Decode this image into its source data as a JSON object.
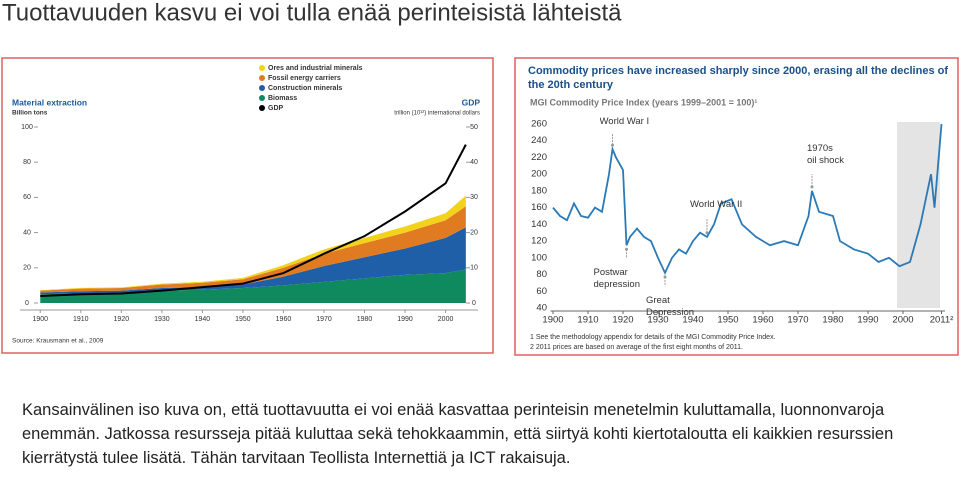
{
  "slide_title": "Tuottavuuden kasvu ei voi tulla enää perinteisistä lähteistä",
  "body_text": "Kansainvälinen iso kuva on, että tuottavuutta ei voi enää kasvattaa perinteisin menetelmin kuluttamalla, luonnonvaroja enemmän. Jatkossa resursseja pitää kuluttaa sekä tehokkaammin, että siirtyä kohti kiertotaloutta eli kaikkien resurssien kierrätystä tulee lisätä. Tähän tarvitaan Teollista Internettiä ja ICT rakaisuja.",
  "chart_data": [
    {
      "type": "stacked-area",
      "title": "Material extraction",
      "y_label": "Billion tons",
      "y2_label": "GDP",
      "y2_unit": "trillion (10¹²) international dollars",
      "source": "Source: Krausmann et al., 2009",
      "x": [
        1900,
        1910,
        1920,
        1930,
        1940,
        1950,
        1960,
        1970,
        1980,
        1990,
        2000,
        2005
      ],
      "series": [
        {
          "name": "Biomass",
          "color": "#0f8a5f",
          "values": [
            5,
            5.5,
            6,
            7,
            7.5,
            8.5,
            10,
            12,
            14,
            16,
            17,
            19
          ]
        },
        {
          "name": "Construction minerals",
          "color": "#1f5fa8",
          "values": [
            1,
            1.2,
            1,
            1.5,
            1.5,
            2,
            5,
            9,
            12,
            15,
            20,
            24
          ]
        },
        {
          "name": "Fossil energy carriers",
          "color": "#e07b22",
          "values": [
            1,
            1.5,
            1.5,
            2,
            2.5,
            3,
            5,
            7,
            8,
            9,
            10,
            12
          ]
        },
        {
          "name": "Ores and industrial minerals",
          "color": "#f2d21b",
          "values": [
            0.3,
            0.4,
            0.4,
            0.5,
            0.6,
            0.8,
            1.5,
            2.5,
            3,
            3.5,
            4,
            6
          ]
        },
        {
          "name": "GDP",
          "color": "#000000",
          "axis": "y2",
          "values": [
            2,
            2.5,
            2.7,
            3.5,
            4.5,
            5.5,
            8.5,
            14,
            19,
            26,
            34,
            45
          ]
        }
      ],
      "xlim": [
        1895,
        2008
      ],
      "xticks": [
        1900,
        1910,
        1920,
        1930,
        1940,
        1950,
        1960,
        1970,
        1980,
        1990,
        2000
      ],
      "ylim": [
        0,
        100
      ],
      "yticks": [
        0,
        20,
        40,
        60,
        80,
        100
      ],
      "y2lim": [
        0,
        50
      ],
      "y2ticks": [
        0,
        10,
        20,
        30,
        40,
        50
      ]
    },
    {
      "type": "line",
      "title": "Commodity prices have increased sharply since 2000, erasing all the declines of the 20th century",
      "subtitle": "MGI Commodity Price Index (years 1999–2001 = 100)¹",
      "x": [
        1900,
        1902,
        1904,
        1906,
        1908,
        1910,
        1912,
        1914,
        1916,
        1917,
        1918,
        1920,
        1921,
        1922,
        1924,
        1926,
        1928,
        1930,
        1932,
        1934,
        1936,
        1938,
        1940,
        1942,
        1944,
        1946,
        1948,
        1951,
        1954,
        1958,
        1962,
        1966,
        1970,
        1973,
        1974,
        1976,
        1980,
        1982,
        1986,
        1990,
        1993,
        1996,
        1999,
        2002,
        2005,
        2008,
        2009,
        2011
      ],
      "series": [
        {
          "name": "MGI Commodity Price Index",
          "color": "#2a7ab8",
          "values": [
            160,
            150,
            145,
            165,
            150,
            148,
            160,
            155,
            200,
            230,
            220,
            205,
            115,
            125,
            135,
            125,
            120,
            100,
            82,
            100,
            110,
            105,
            120,
            130,
            125,
            140,
            165,
            170,
            140,
            125,
            115,
            120,
            115,
            150,
            180,
            155,
            150,
            120,
            110,
            105,
            95,
            100,
            90,
            95,
            140,
            200,
            160,
            260
          ]
        }
      ],
      "xlim": [
        1895,
        2012
      ],
      "xticks": [
        1900,
        1910,
        1920,
        1930,
        1940,
        1950,
        1960,
        1970,
        1980,
        1990,
        2000,
        {
          "value": 2011,
          "label": "2011²"
        }
      ],
      "ylim": [
        40,
        260
      ],
      "yticks": [
        40,
        60,
        80,
        100,
        120,
        140,
        160,
        180,
        200,
        220,
        240,
        260
      ],
      "annotations": [
        {
          "text": "World War I",
          "x": 1917,
          "y": 230
        },
        {
          "text": "World War II",
          "x": 1944,
          "y": 125
        },
        {
          "text": "1970s\noil shock",
          "x": 1974,
          "y": 180
        },
        {
          "text": "Postwar\ndepression",
          "x": 1921,
          "y": 115
        },
        {
          "text": "Great\nDepression",
          "x": 1932,
          "y": 82
        }
      ],
      "footnotes": [
        "1  See the methodology appendix for details of the MGI Commodity Price Index.",
        "2  2011 prices are based on average of the first eight months of 2011."
      ]
    }
  ]
}
